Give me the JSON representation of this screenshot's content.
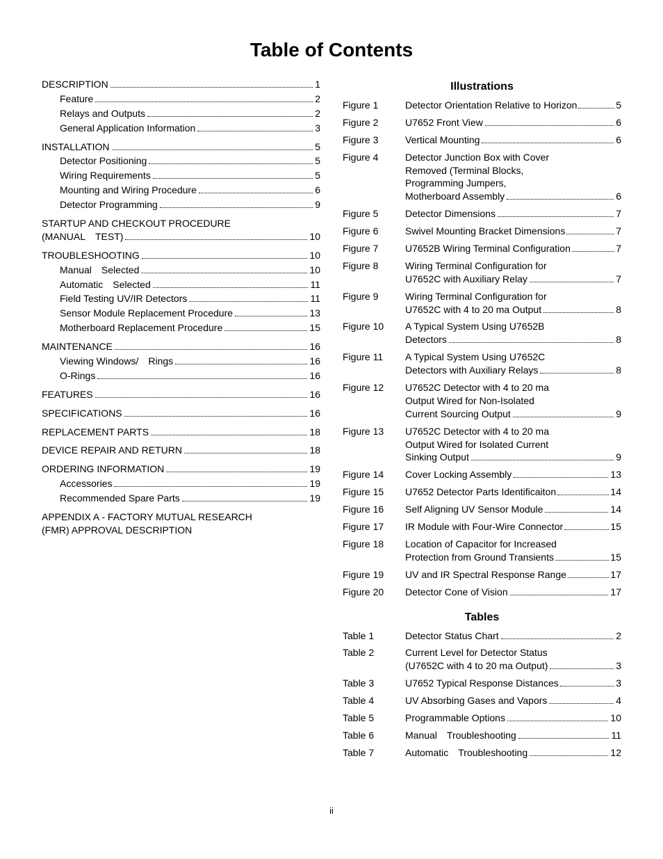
{
  "title": "Table of Contents",
  "footer": "ii",
  "left": {
    "items": [
      {
        "label": "DESCRIPTION",
        "page": "1",
        "indent": 0,
        "section": false
      },
      {
        "label": "Feature",
        "page": "2",
        "indent": 1,
        "section": false
      },
      {
        "label": "Relays and Outputs",
        "page": "2",
        "indent": 1,
        "section": false
      },
      {
        "label": "General Application Information",
        "page": "3",
        "indent": 1,
        "section": false
      },
      {
        "label": "INSTALLATION",
        "page": "5",
        "indent": 0,
        "section": true
      },
      {
        "label": "Detector Positioning",
        "page": "5",
        "indent": 1,
        "section": false
      },
      {
        "label": "Wiring Requirements",
        "page": "5",
        "indent": 1,
        "section": false
      },
      {
        "label": "Mounting and Wiring Procedure",
        "page": "6",
        "indent": 1,
        "section": false
      },
      {
        "label": "Detector Programming",
        "page": "9",
        "indent": 1,
        "section": false
      }
    ],
    "startup": {
      "line1": "STARTUP AND CHECKOUT PROCEDURE",
      "line2_label": "(MANUAL TEST)",
      "line2_page": "10"
    },
    "items2": [
      {
        "label": "TROUBLESHOOTING",
        "page": "10",
        "indent": 0,
        "section": true
      },
      {
        "label": "Manual Selected",
        "page": "10",
        "indent": 1,
        "section": false
      },
      {
        "label": "Automatic Selected",
        "page": "11",
        "indent": 1,
        "section": false
      },
      {
        "label": "Field Testing UV/IR Detectors",
        "page": "11",
        "indent": 1,
        "section": false
      },
      {
        "label": "Sensor Module Replacement Procedure",
        "page": "13",
        "indent": 1,
        "section": false
      },
      {
        "label": "Motherboard Replacement Procedure",
        "page": "15",
        "indent": 1,
        "section": false
      },
      {
        "label": "MAINTENANCE",
        "page": "16",
        "indent": 0,
        "section": true
      },
      {
        "label": "Viewing Windows/ Rings",
        "page": "16",
        "indent": 1,
        "section": false
      },
      {
        "label": "O-Rings",
        "page": "16",
        "indent": 1,
        "section": false
      },
      {
        "label": "FEATURES",
        "page": "16",
        "indent": 0,
        "section": true
      },
      {
        "label": "SPECIFICATIONS",
        "page": "16",
        "indent": 0,
        "section": true
      },
      {
        "label": "REPLACEMENT PARTS",
        "page": "18",
        "indent": 0,
        "section": true
      },
      {
        "label": "DEVICE REPAIR AND RETURN",
        "page": "18",
        "indent": 0,
        "section": true
      },
      {
        "label": "ORDERING INFORMATION",
        "page": "19",
        "indent": 0,
        "section": true
      },
      {
        "label": "Accessories",
        "page": "19",
        "indent": 1,
        "section": false
      },
      {
        "label": "Recommended Spare Parts",
        "page": "19",
        "indent": 1,
        "section": false
      }
    ],
    "appendix": {
      "line1": "APPENDIX A - FACTORY MUTUAL RESEARCH",
      "line2": "(FMR) APPROVAL DESCRIPTION"
    }
  },
  "right": {
    "illus_head": "Illustrations",
    "tables_head": "Tables",
    "figures": [
      {
        "key": "Figure 1",
        "lines": [
          "Detector Orientation Relative to Horizon"
        ],
        "page": "5",
        "tight": true
      },
      {
        "key": "Figure 2",
        "lines": [
          "U7652 Front View"
        ],
        "page": "6"
      },
      {
        "key": "Figure 3",
        "lines": [
          "Vertical Mounting"
        ],
        "page": "6"
      },
      {
        "key": "Figure 4",
        "lines": [
          "Detector Junction Box with Cover",
          "Removed (Terminal Blocks,",
          "Programming Jumpers,",
          "Motherboard Assembly"
        ],
        "page": "6"
      },
      {
        "key": "Figure 5",
        "lines": [
          "Detector Dimensions"
        ],
        "page": "7"
      },
      {
        "key": "Figure 6",
        "lines": [
          "Swivel Mounting Bracket Dimensions"
        ],
        "page": "7",
        "tight": true
      },
      {
        "key": "Figure 7",
        "lines": [
          "U7652B Wiring Terminal Configuration"
        ],
        "page": "7",
        "tight": true
      },
      {
        "key": "Figure 8",
        "lines": [
          "Wiring Terminal Configuration for",
          "U7652C with Auxiliary Relay"
        ],
        "page": "7"
      },
      {
        "key": "Figure 9",
        "lines": [
          "Wiring Terminal Configuration for",
          "U7652C with 4 to 20 ma Output"
        ],
        "page": "8"
      },
      {
        "key": "Figure 10",
        "lines": [
          "A Typical System Using U7652B",
          "Detectors"
        ],
        "page": "8"
      },
      {
        "key": "Figure 11",
        "lines": [
          "A Typical System Using U7652C",
          "Detectors with Auxiliary Relays"
        ],
        "page": "8"
      },
      {
        "key": "Figure 12",
        "lines": [
          "U7652C Detector with 4 to 20 ma",
          "Output Wired for Non-Isolated",
          "Current Sourcing Output"
        ],
        "page": "9"
      },
      {
        "key": "Figure 13",
        "lines": [
          "U7652C Detector with 4 to 20 ma",
          "Output Wired for Isolated Current",
          "Sinking Output"
        ],
        "page": "9"
      },
      {
        "key": "Figure 14",
        "lines": [
          "Cover Locking Assembly"
        ],
        "page": "13"
      },
      {
        "key": "Figure 15",
        "lines": [
          "U7652 Detector Parts Identificaiton"
        ],
        "page": "14",
        "tight": true
      },
      {
        "key": "Figure 16",
        "lines": [
          "Self Aligning UV Sensor Module"
        ],
        "page": "14"
      },
      {
        "key": "Figure 17",
        "lines": [
          "IR Module with Four-Wire Connector"
        ],
        "page": "15",
        "tight": true
      },
      {
        "key": "Figure 18",
        "lines": [
          "Location of Capacitor for Increased",
          "Protection from Ground Transients"
        ],
        "page": "15",
        "tight": true
      },
      {
        "key": "Figure 19",
        "lines": [
          "UV and IR Spectral Response Range"
        ],
        "page": "17",
        "tight": true
      },
      {
        "key": "Figure 20",
        "lines": [
          "Detector Cone of Vision"
        ],
        "page": "17"
      }
    ],
    "tables": [
      {
        "key": "Table 1",
        "lines": [
          "Detector Status Chart"
        ],
        "page": "2"
      },
      {
        "key": "Table 2",
        "lines": [
          "Current Level for Detector Status",
          "(U7652C with 4 to 20 ma Output)"
        ],
        "page": "3"
      },
      {
        "key": "Table 3",
        "lines": [
          "U7652 Typical Response Distances"
        ],
        "page": "3",
        "tight": true
      },
      {
        "key": "Table 4",
        "lines": [
          "UV Absorbing Gases and Vapors"
        ],
        "page": "4"
      },
      {
        "key": "Table 5",
        "lines": [
          "Programmable Options"
        ],
        "page": "10"
      },
      {
        "key": "Table 6",
        "lines": [
          "Manual Troubleshooting"
        ],
        "page": "11"
      },
      {
        "key": "Table 7",
        "lines": [
          "Automatic Troubleshooting"
        ],
        "page": "12"
      }
    ]
  }
}
